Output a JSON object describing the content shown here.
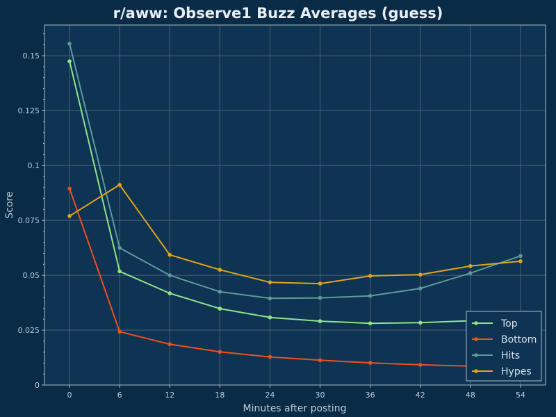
{
  "chart_data": {
    "type": "line",
    "title": "r/aww: Observe1 Buzz Averages (guess)",
    "xlabel": "Minutes after posting",
    "ylabel": "Score",
    "x": [
      0,
      6,
      12,
      18,
      24,
      30,
      36,
      42,
      48,
      54
    ],
    "xticks": [
      "0",
      "6",
      "12",
      "18",
      "24",
      "30",
      "36",
      "42",
      "48",
      "54"
    ],
    "yticks": [
      {
        "value": 0,
        "label": "0"
      },
      {
        "value": 0.025,
        "label": "0.025"
      },
      {
        "value": 0.05,
        "label": "0.05"
      },
      {
        "value": 0.075,
        "label": "0.075"
      },
      {
        "value": 0.1,
        "label": "0.1"
      },
      {
        "value": 0.125,
        "label": "0.125"
      },
      {
        "value": 0.15,
        "label": "0.15"
      }
    ],
    "xlim": [
      -3,
      57
    ],
    "ylim": [
      0,
      0.164
    ],
    "grid": true,
    "legend_position": "bottom-right",
    "series": [
      {
        "name": "Top",
        "color": "#8ee68a",
        "values": [
          0.1475,
          0.0518,
          0.0418,
          0.0348,
          0.0308,
          0.0291,
          0.0281,
          0.0284,
          0.0293,
          0.03
        ]
      },
      {
        "name": "Bottom",
        "color": "#ee5020",
        "values": [
          0.0895,
          0.0243,
          0.0186,
          0.0151,
          0.0128,
          0.0113,
          0.0101,
          0.0092,
          0.0086,
          0.0081
        ]
      },
      {
        "name": "Hits",
        "color": "#5e9a9c",
        "values": [
          0.1555,
          0.0625,
          0.05,
          0.0425,
          0.0395,
          0.0397,
          0.0406,
          0.044,
          0.051,
          0.0588
        ]
      },
      {
        "name": "Hypes",
        "color": "#e0a51c",
        "values": [
          0.077,
          0.0912,
          0.0593,
          0.0525,
          0.0468,
          0.0462,
          0.0497,
          0.0503,
          0.0542,
          0.0564
        ]
      }
    ],
    "colors": {
      "background": "#0a2b45",
      "plot_background": "#0f3352",
      "legend_background": "#0f3352"
    }
  }
}
